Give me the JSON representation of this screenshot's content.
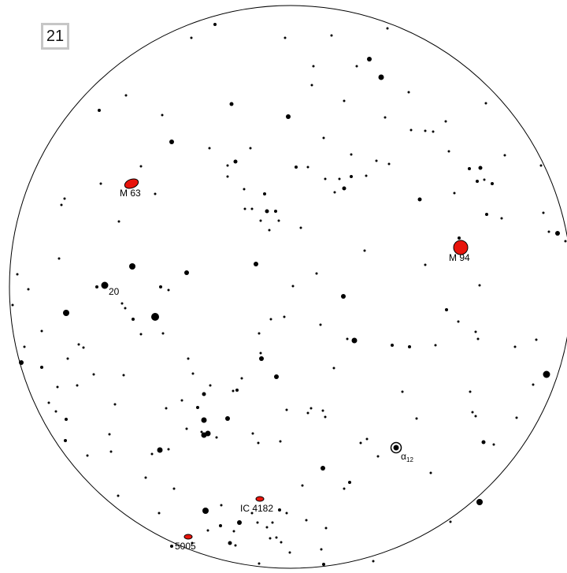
{
  "page_number": "21",
  "colors": {
    "star": "#000000",
    "dso_fill": "#e8140c",
    "dso_stroke": "#000000",
    "background": "#ffffff",
    "page_box_border": "#c6c6c6"
  },
  "labels": {
    "m63": "M 63",
    "m94": "M 94",
    "star20": "20",
    "ic4182": "IC 4182",
    "ngc5005": "5005",
    "alpha_letter": "α",
    "alpha_sub": "12"
  }
}
